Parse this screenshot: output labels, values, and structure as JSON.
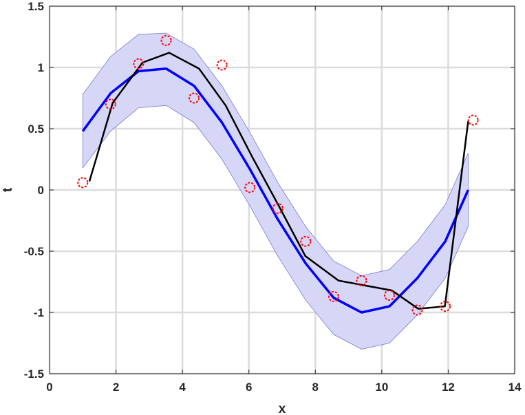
{
  "chart_data": {
    "type": "line",
    "title": "",
    "xlabel": "x",
    "ylabel": "t",
    "xlim": [
      0,
      14
    ],
    "ylim": [
      -1.5,
      1.5
    ],
    "xticks": [
      0,
      2,
      4,
      6,
      8,
      10,
      12,
      14
    ],
    "yticks": [
      -1.5,
      -1,
      -0.5,
      0,
      0.5,
      1,
      1.5
    ],
    "xtick_labels": [
      "0",
      "2",
      "4",
      "6",
      "8",
      "10",
      "12",
      "14"
    ],
    "ytick_labels": [
      "-1.5",
      "-1",
      "-0.5",
      "0",
      "0.5",
      "1",
      "1.5"
    ],
    "grid": true,
    "legend": "none",
    "x": [
      1.0,
      1.84,
      2.68,
      3.51,
      4.35,
      5.19,
      6.03,
      6.87,
      7.71,
      8.55,
      9.39,
      10.23,
      11.07,
      11.91,
      12.6
    ],
    "band": {
      "color": "#d6d6f7",
      "edge_color": "#7a7ad8",
      "lower": [
        0.18,
        0.48,
        0.67,
        0.69,
        0.55,
        0.25,
        -0.13,
        -0.54,
        -0.9,
        -1.18,
        -1.3,
        -1.25,
        -1.02,
        -0.72,
        -0.3
      ],
      "upper": [
        0.78,
        1.09,
        1.27,
        1.28,
        1.15,
        0.85,
        0.47,
        0.06,
        -0.3,
        -0.58,
        -0.7,
        -0.65,
        -0.42,
        -0.12,
        0.3
      ]
    },
    "series": [
      {
        "color": "#0000ff",
        "width": 3.5,
        "x": [
          1.0,
          1.84,
          2.68,
          3.51,
          4.35,
          5.19,
          6.03,
          6.87,
          7.71,
          8.55,
          9.39,
          10.23,
          11.07,
          11.91,
          12.6
        ],
        "values": [
          0.48,
          0.79,
          0.97,
          0.99,
          0.85,
          0.55,
          0.17,
          -0.24,
          -0.6,
          -0.88,
          -1.0,
          -0.95,
          -0.72,
          -0.42,
          0.0
        ]
      },
      {
        "color": "#000000",
        "width": 2.5,
        "x": [
          1.2,
          1.9,
          2.8,
          3.6,
          4.5,
          5.3,
          6.1,
          6.9,
          7.7,
          8.7,
          9.5,
          10.3,
          11.1,
          11.9,
          12.6
        ],
        "values": [
          0.07,
          0.71,
          1.04,
          1.12,
          0.99,
          0.69,
          0.27,
          -0.13,
          -0.54,
          -0.74,
          -0.78,
          -0.82,
          -0.97,
          -0.95,
          0.56
        ]
      }
    ],
    "points": {
      "color": "#ff0000",
      "x": [
        1.0,
        1.84,
        2.68,
        3.51,
        4.35,
        5.19,
        6.03,
        6.87,
        7.71,
        8.55,
        9.39,
        10.23,
        11.07,
        11.91,
        12.75
      ],
      "values": [
        0.06,
        0.7,
        1.03,
        1.22,
        0.75,
        1.02,
        0.02,
        -0.15,
        -0.42,
        -0.87,
        -0.74,
        -0.86,
        -0.98,
        -0.95,
        0.57
      ]
    }
  }
}
